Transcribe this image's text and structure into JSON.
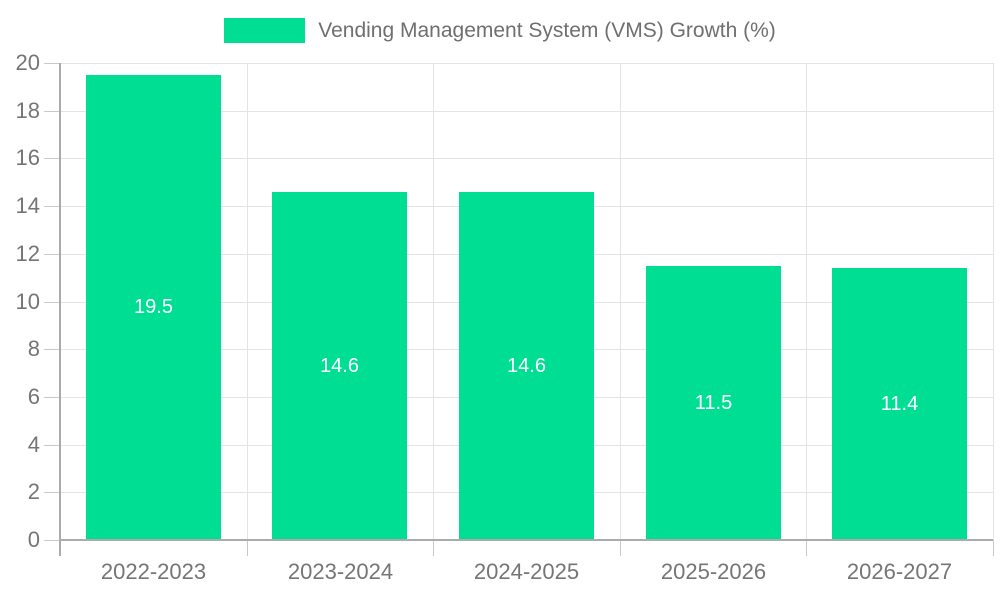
{
  "legend": {
    "label": "Vending Management System (VMS) Growth (%)"
  },
  "chart_data": {
    "type": "bar",
    "title": "Vending Management System (VMS) Growth (%)",
    "categories": [
      "2022-2023",
      "2023-2024",
      "2024-2025",
      "2025-2026",
      "2026-2027"
    ],
    "values": [
      19.5,
      14.6,
      14.6,
      11.5,
      11.4
    ],
    "value_labels": [
      "19.5",
      "14.6",
      "14.6",
      "11.5",
      "11.4"
    ],
    "xlabel": "",
    "ylabel": "",
    "ylim": [
      0,
      20
    ],
    "ytick_step": 2,
    "yticks": [
      0,
      2,
      4,
      6,
      8,
      10,
      12,
      14,
      16,
      18,
      20
    ],
    "grid": true,
    "legend_position": "top",
    "colors": {
      "bar": "#00de94",
      "value_label": "#ffffff",
      "axis_text": "#757575",
      "legend_text": "#6f6f6f",
      "gridline": "#e4e4e4",
      "axis_line": "#ababab",
      "tick": "#c9c9c9",
      "background": "#ffffff"
    }
  }
}
